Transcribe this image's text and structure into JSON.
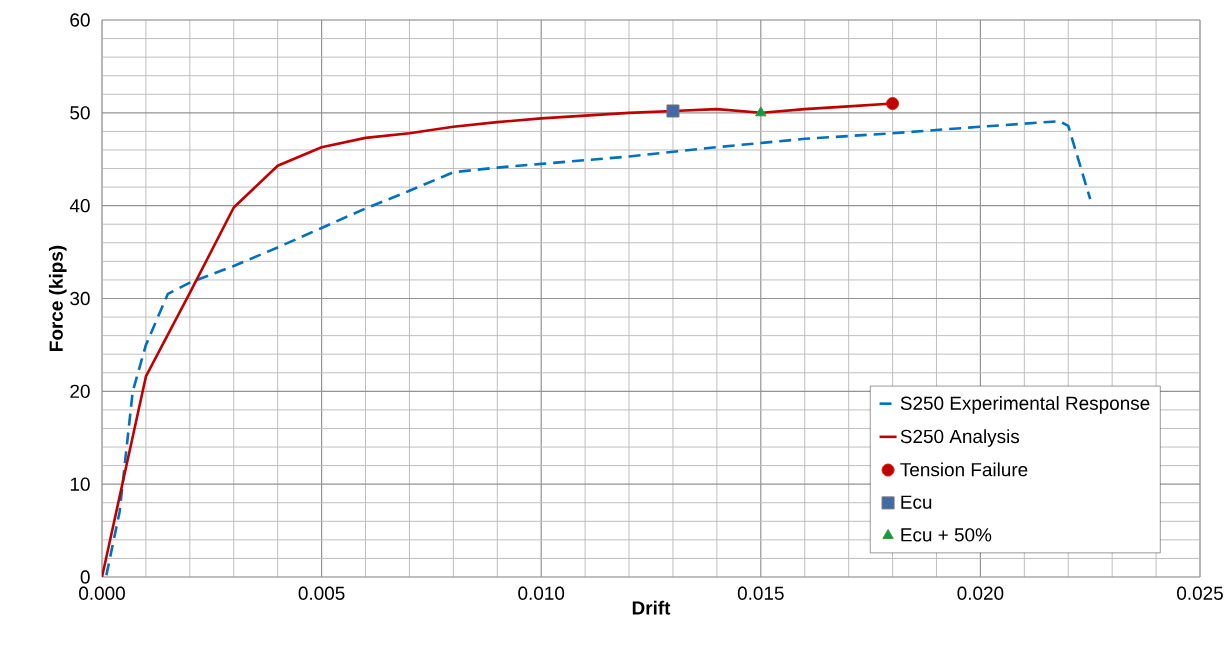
{
  "chart_data": {
    "type": "line",
    "xlabel": "Drift",
    "ylabel": "Force (kips)",
    "xlim": [
      0,
      0.025
    ],
    "ylim": [
      0,
      60
    ],
    "xticks": [
      {
        "value": 0,
        "label": "0.000"
      },
      {
        "value": 0.005,
        "label": "0.005"
      },
      {
        "value": 0.01,
        "label": "0.010"
      },
      {
        "value": 0.015,
        "label": "0.015"
      },
      {
        "value": 0.02,
        "label": "0.020"
      },
      {
        "value": 0.025,
        "label": "0.025"
      }
    ],
    "yticks": [
      0,
      10,
      20,
      30,
      40,
      50,
      60
    ],
    "grid": true,
    "legend": "bottom right",
    "series": [
      {
        "name": "S250 Experimental Response",
        "color": "#0070c0",
        "line_style": "dashed",
        "marker": "none",
        "x": [
          0.0001,
          0.0004,
          0.0007,
          0.001,
          0.0015,
          0.002,
          0.003,
          0.004,
          0.005,
          0.006,
          0.007,
          0.008,
          0.009,
          0.01,
          0.012,
          0.014,
          0.016,
          0.018,
          0.02,
          0.0218,
          0.022,
          0.0225
        ],
        "values": [
          0.2,
          7,
          20,
          25,
          30.5,
          31.7,
          33.5,
          35.5,
          37.6,
          39.7,
          41.6,
          43.6,
          44.1,
          44.5,
          45.3,
          46.3,
          47.2,
          47.8,
          48.5,
          49.1,
          48.6,
          40.7
        ]
      },
      {
        "name": "S250 Analysis",
        "color": "#c00000",
        "line_style": "solid",
        "marker": "none",
        "x": [
          0,
          0.001,
          0.002,
          0.003,
          0.004,
          0.005,
          0.006,
          0.007,
          0.008,
          0.009,
          0.01,
          0.011,
          0.012,
          0.013,
          0.014,
          0.015,
          0.016,
          0.017,
          0.018
        ],
        "values": [
          0,
          21.6,
          30.6,
          39.8,
          44.3,
          46.3,
          47.3,
          47.8,
          48.5,
          49.0,
          49.4,
          49.7,
          50.0,
          50.2,
          50.4,
          50.0,
          50.4,
          50.7,
          51.0
        ]
      },
      {
        "name": "Tension Failure",
        "type": "scatter",
        "color": "#c00000",
        "marker": "circle",
        "x": [
          0.018
        ],
        "values": [
          51.0
        ]
      },
      {
        "name": "Ecu",
        "type": "scatter",
        "color": "#3f6aa4",
        "marker": "square",
        "x": [
          0.013
        ],
        "values": [
          50.2
        ]
      },
      {
        "name": "Ecu + 50%",
        "type": "scatter",
        "color": "#00a050",
        "marker": "triangle",
        "x": [
          0.015
        ],
        "values": [
          50.0
        ]
      }
    ]
  }
}
